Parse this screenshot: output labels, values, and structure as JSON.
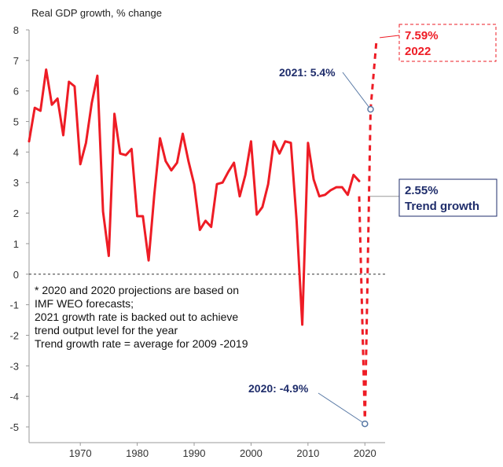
{
  "chart_data": {
    "type": "line",
    "ylabel": "Real GDP growth, % change",
    "xlim": [
      1961,
      2023
    ],
    "ylim": [
      -5,
      8
    ],
    "yticks": [
      -5,
      -4,
      -3,
      -2,
      -1,
      0,
      1,
      2,
      3,
      4,
      5,
      6,
      7,
      8
    ],
    "xticks": [
      1970,
      1980,
      1990,
      2000,
      2010,
      2020
    ],
    "grid": false,
    "series": [
      {
        "style": "solid",
        "color": "#ee1c25",
        "x": [
          1961,
          1962,
          1963,
          1964,
          1965,
          1966,
          1967,
          1968,
          1969,
          1970,
          1971,
          1972,
          1973,
          1974,
          1975,
          1976,
          1977,
          1978,
          1979,
          1980,
          1981,
          1982,
          1983,
          1984,
          1985,
          1986,
          1987,
          1988,
          1989,
          1990,
          1991,
          1992,
          1993,
          1994,
          1995,
          1996,
          1997,
          1998,
          1999,
          2000,
          2001,
          2002,
          2003,
          2004,
          2005,
          2006,
          2007,
          2008,
          2009,
          2010,
          2011,
          2012,
          2013,
          2014,
          2015,
          2016,
          2017,
          2018,
          2019
        ],
        "y": [
          4.35,
          5.45,
          5.35,
          6.7,
          5.55,
          5.75,
          4.55,
          6.3,
          6.15,
          3.6,
          4.3,
          5.6,
          6.5,
          2.05,
          0.6,
          5.25,
          3.95,
          3.9,
          4.1,
          1.9,
          1.9,
          0.45,
          2.6,
          4.45,
          3.7,
          3.4,
          3.65,
          4.6,
          3.7,
          2.95,
          1.45,
          1.75,
          1.55,
          2.95,
          3.0,
          3.35,
          3.65,
          2.55,
          3.25,
          4.35,
          1.95,
          2.2,
          2.95,
          4.35,
          3.95,
          4.35,
          4.3,
          1.75,
          -1.65,
          4.3,
          3.1,
          2.55,
          2.6,
          2.75,
          2.85,
          2.85,
          2.6,
          3.25,
          3.05
        ]
      },
      {
        "style": "dashed",
        "color": "#ee1c25",
        "x": [
          2019,
          2020,
          2021,
          2022
        ],
        "y": [
          2.55,
          -4.9,
          5.4,
          7.59
        ]
      }
    ],
    "trend_growth": 2.55,
    "annotations": {
      "y2021": "2021: 5.4%",
      "y2020": "2020: -4.9%",
      "y2022_value": "7.59%",
      "y2022_year": "2022",
      "trend_value": "2.55%",
      "trend_label": "Trend growth"
    },
    "notes": [
      "* 2020 and 2020 projections are based on",
      "IMF WEO forecasts;",
      "2021 growth rate is backed out to achieve",
      "trend output level for the year",
      "Trend growth rate = average for 2009 -2019"
    ]
  }
}
